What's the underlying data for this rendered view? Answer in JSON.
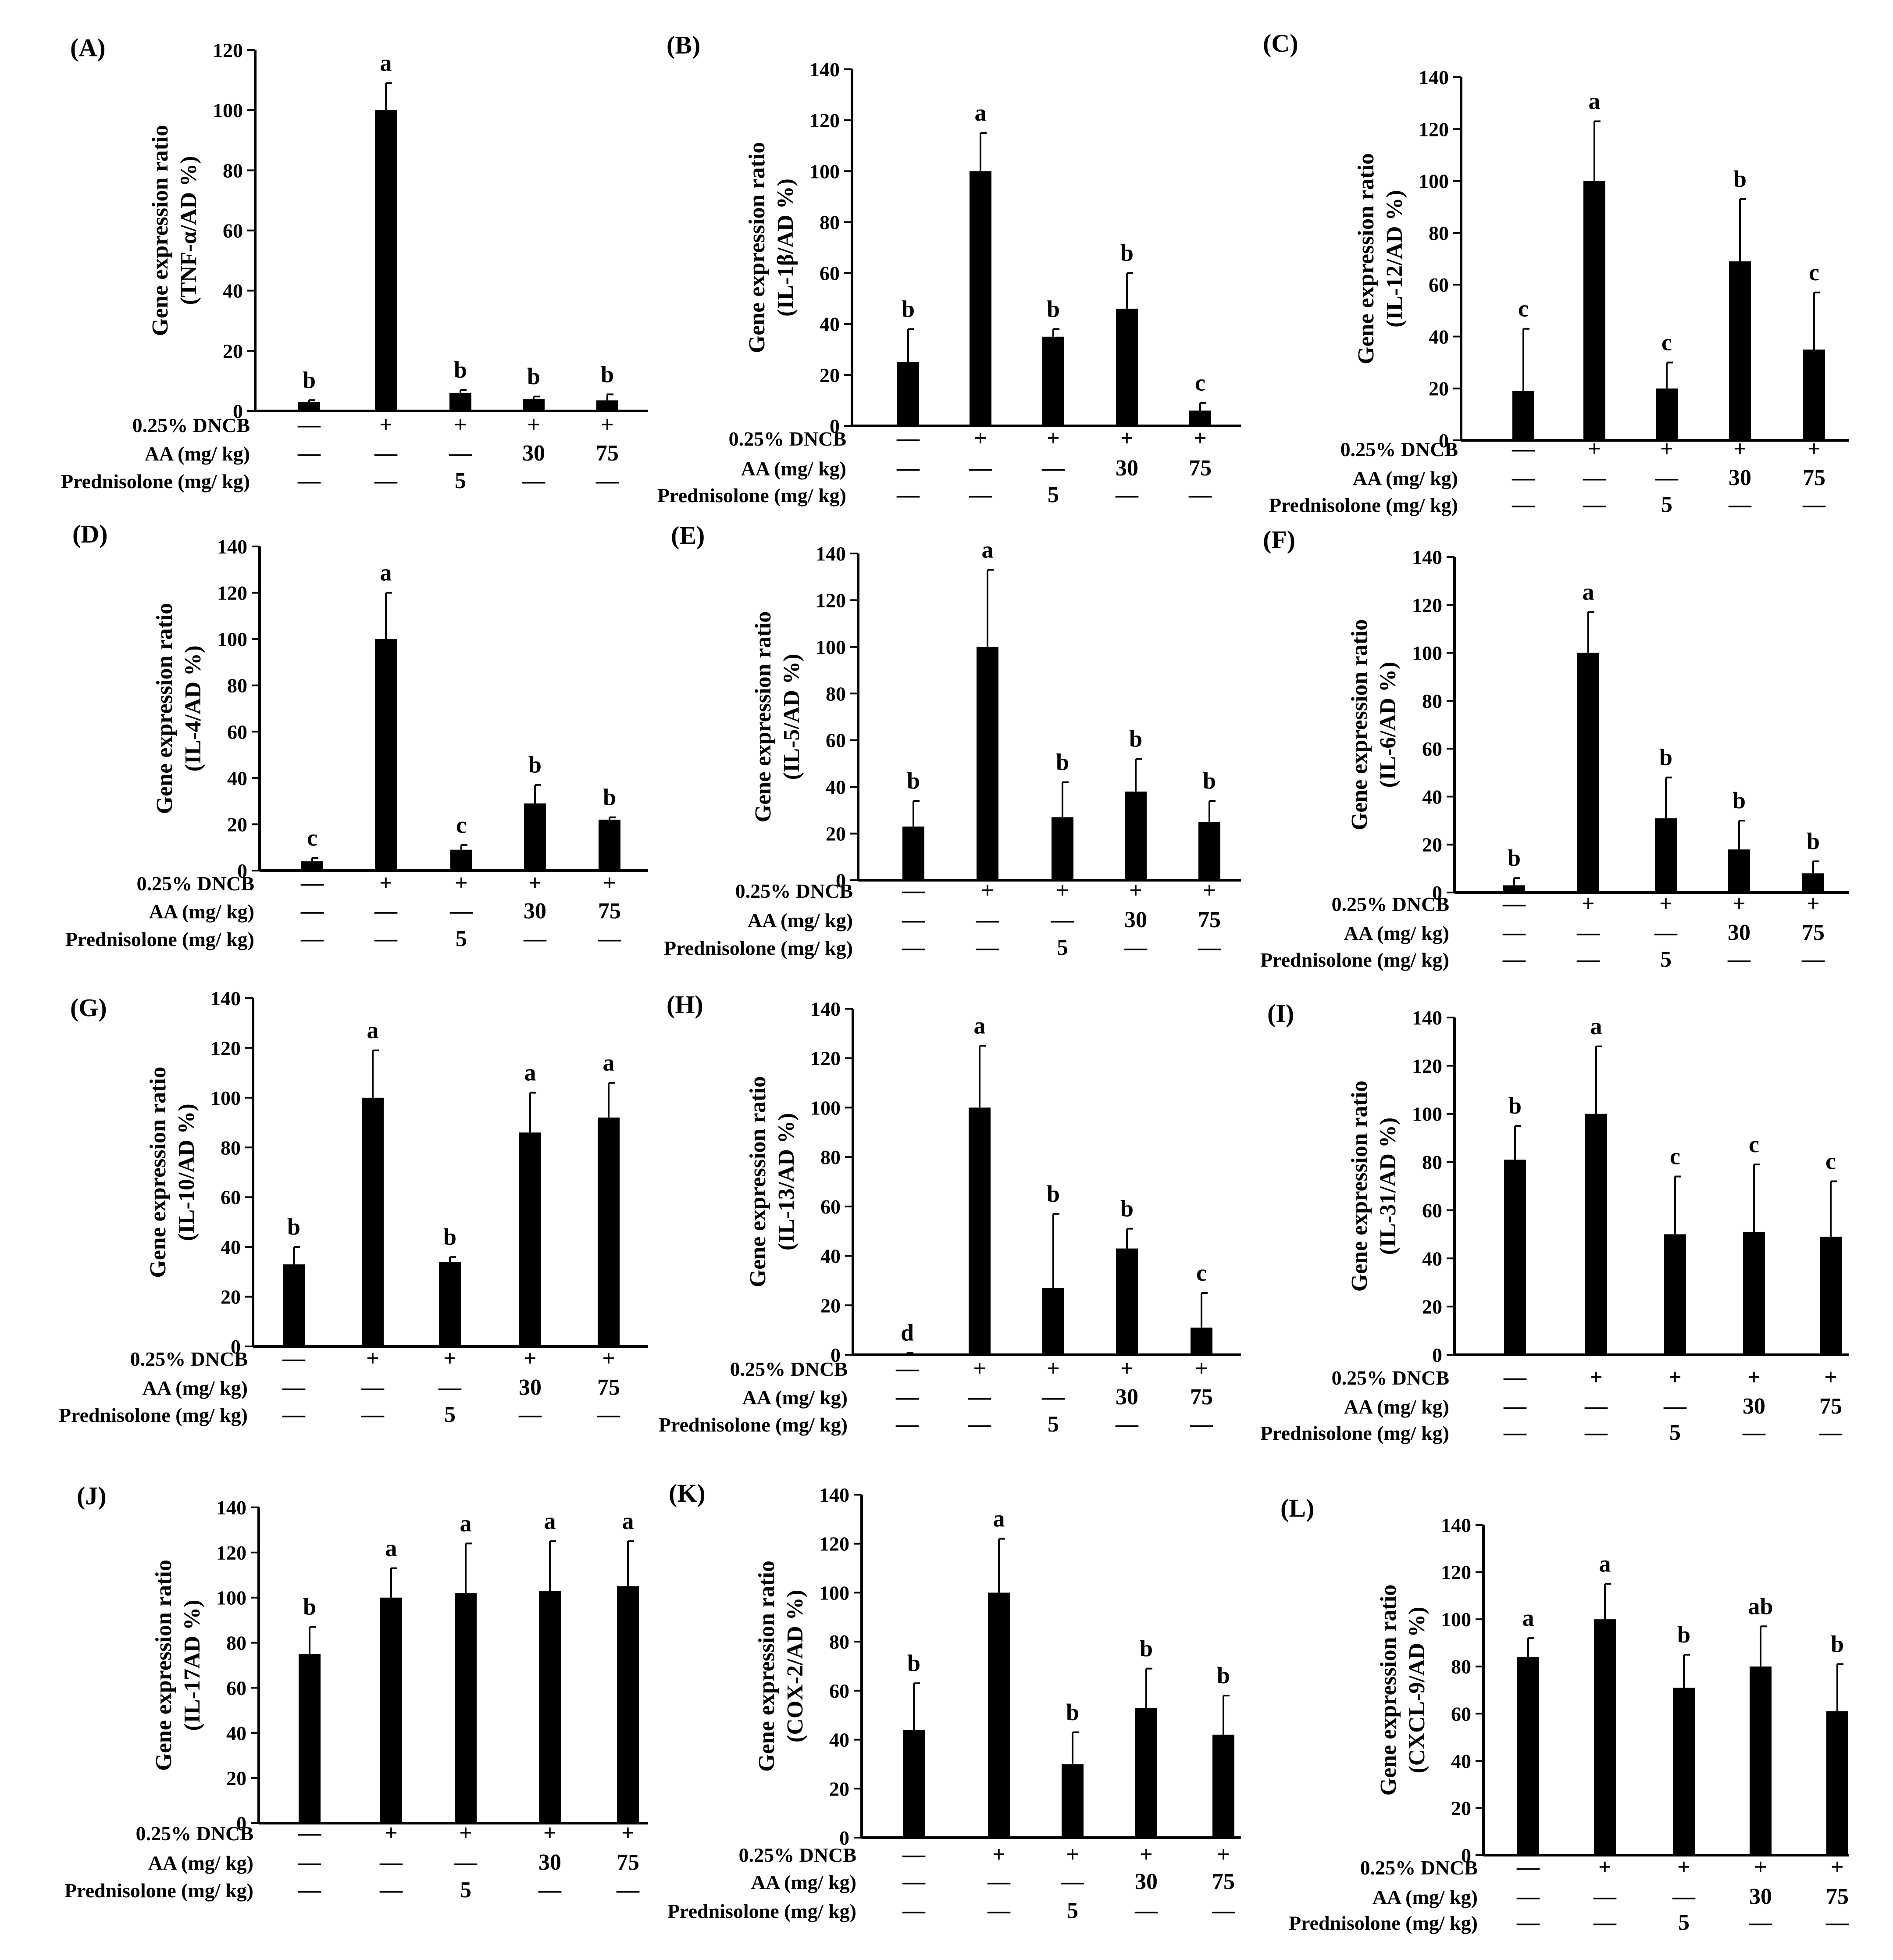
{
  "figure": {
    "row_labels": [
      "0.25% DNCB",
      "AA (mg/ kg)",
      "Prednisolone (mg/ kg)"
    ],
    "treatments": {
      "dncb": [
        "—",
        "+",
        "+",
        "+",
        "+"
      ],
      "aa": [
        "—",
        "—",
        "—",
        "30",
        "75"
      ],
      "prednisolone": [
        "—",
        "—",
        "5",
        "—",
        "—"
      ]
    },
    "ylabel_main": "Gene expression ratio",
    "colors": {
      "bar": "#000000",
      "axis": "#000000"
    }
  },
  "chart_data": [
    {
      "type": "bar",
      "panel": "(A)",
      "ylabel_unit": "(TNF-α/AD %)",
      "ylim": [
        0,
        120
      ],
      "yticks": [
        0,
        20,
        40,
        60,
        80,
        100,
        120
      ],
      "values": [
        3,
        100,
        6,
        4,
        3.5
      ],
      "errors": [
        0.6,
        9,
        1,
        0.8,
        2
      ],
      "letters": [
        "b",
        "a",
        "b",
        "b",
        "b"
      ]
    },
    {
      "type": "bar",
      "panel": "(B)",
      "ylabel_unit": "(IL-1β/AD %)",
      "ylim": [
        0,
        140
      ],
      "yticks": [
        0,
        20,
        40,
        60,
        80,
        100,
        120,
        140
      ],
      "values": [
        25,
        100,
        35,
        46,
        6
      ],
      "errors": [
        13,
        15,
        3,
        14,
        3
      ],
      "letters": [
        "b",
        "a",
        "b",
        "b",
        "c"
      ]
    },
    {
      "type": "bar",
      "panel": "(C)",
      "ylabel_unit": "(IL-12/AD %)",
      "ylim": [
        0,
        140
      ],
      "yticks": [
        0,
        20,
        40,
        60,
        80,
        100,
        120,
        140
      ],
      "values": [
        19,
        100,
        20,
        69,
        35
      ],
      "errors": [
        24,
        23,
        10,
        24,
        22
      ],
      "letters": [
        "c",
        "a",
        "c",
        "b",
        "c"
      ]
    },
    {
      "type": "bar",
      "panel": "(D)",
      "ylabel_unit": "(IL-4/AD %)",
      "ylim": [
        0,
        140
      ],
      "yticks": [
        0,
        20,
        40,
        60,
        80,
        100,
        120,
        140
      ],
      "values": [
        4,
        100,
        9,
        29,
        22
      ],
      "errors": [
        1.5,
        20,
        2,
        8,
        1
      ],
      "letters": [
        "c",
        "a",
        "c",
        "b",
        "b"
      ]
    },
    {
      "type": "bar",
      "panel": "(E)",
      "ylabel_unit": "(IL-5/AD %)",
      "ylim": [
        0,
        140
      ],
      "yticks": [
        0,
        20,
        40,
        60,
        80,
        100,
        120,
        140
      ],
      "values": [
        23,
        100,
        27,
        38,
        25
      ],
      "errors": [
        11,
        33,
        15,
        14,
        9
      ],
      "letters": [
        "b",
        "a",
        "b",
        "b",
        "b"
      ]
    },
    {
      "type": "bar",
      "panel": "(F)",
      "ylabel_unit": "(IL-6/AD %)",
      "ylim": [
        0,
        140
      ],
      "yticks": [
        0,
        20,
        40,
        60,
        80,
        100,
        120,
        140
      ],
      "values": [
        3,
        100,
        31,
        18,
        8
      ],
      "errors": [
        3,
        17,
        17,
        12,
        5
      ],
      "letters": [
        "b",
        "a",
        "b",
        "b",
        "b"
      ]
    },
    {
      "type": "bar",
      "panel": "(G)",
      "ylabel_unit": "(IL-10/AD %)",
      "ylim": [
        0,
        140
      ],
      "yticks": [
        0,
        20,
        40,
        60,
        80,
        100,
        120,
        140
      ],
      "values": [
        33,
        100,
        34,
        86,
        92
      ],
      "errors": [
        7,
        19,
        2,
        16,
        14
      ],
      "letters": [
        "b",
        "a",
        "b",
        "a",
        "a"
      ]
    },
    {
      "type": "bar",
      "panel": "(H)",
      "ylabel_unit": "(IL-13/AD %)",
      "ylim": [
        0,
        140
      ],
      "yticks": [
        0,
        20,
        40,
        60,
        80,
        100,
        120,
        140
      ],
      "values": [
        0.5,
        100,
        27,
        43,
        11
      ],
      "errors": [
        0.3,
        25,
        30,
        8,
        14
      ],
      "letters": [
        "d",
        "a",
        "b",
        "b",
        "c"
      ]
    },
    {
      "type": "bar",
      "panel": "(I)",
      "ylabel_unit": "(IL-31/AD %)",
      "ylim": [
        0,
        140
      ],
      "yticks": [
        0,
        20,
        40,
        60,
        80,
        100,
        120,
        140
      ],
      "values": [
        81,
        100,
        50,
        51,
        49
      ],
      "errors": [
        14,
        28,
        24,
        28,
        23
      ],
      "letters": [
        "b",
        "a",
        "c",
        "c",
        "c"
      ]
    },
    {
      "type": "bar",
      "panel": "(J)",
      "ylabel_unit": "(IL-17AD %)",
      "ylim": [
        0,
        140
      ],
      "yticks": [
        0,
        20,
        40,
        60,
        80,
        100,
        120,
        140
      ],
      "values": [
        75,
        100,
        102,
        103,
        105
      ],
      "errors": [
        12,
        13,
        22,
        22,
        20
      ],
      "letters": [
        "b",
        "a",
        "a",
        "a",
        "a"
      ]
    },
    {
      "type": "bar",
      "panel": "(K)",
      "ylabel_unit": "(COX-2/AD %)",
      "ylim": [
        0,
        140
      ],
      "yticks": [
        0,
        20,
        40,
        60,
        80,
        100,
        120,
        140
      ],
      "values": [
        44,
        100,
        30,
        53,
        42
      ],
      "errors": [
        19,
        22,
        13,
        16,
        16
      ],
      "letters": [
        "b",
        "a",
        "b",
        "b",
        "b"
      ]
    },
    {
      "type": "bar",
      "panel": "(L)",
      "ylabel_unit": "(CXCL-9/AD %)",
      "ylim": [
        0,
        140
      ],
      "yticks": [
        0,
        20,
        40,
        60,
        80,
        100,
        120,
        140
      ],
      "values": [
        84,
        100,
        71,
        80,
        61
      ],
      "errors": [
        8,
        15,
        14,
        17,
        20
      ],
      "letters": [
        "a",
        "a",
        "b",
        "ab",
        "b"
      ]
    }
  ]
}
